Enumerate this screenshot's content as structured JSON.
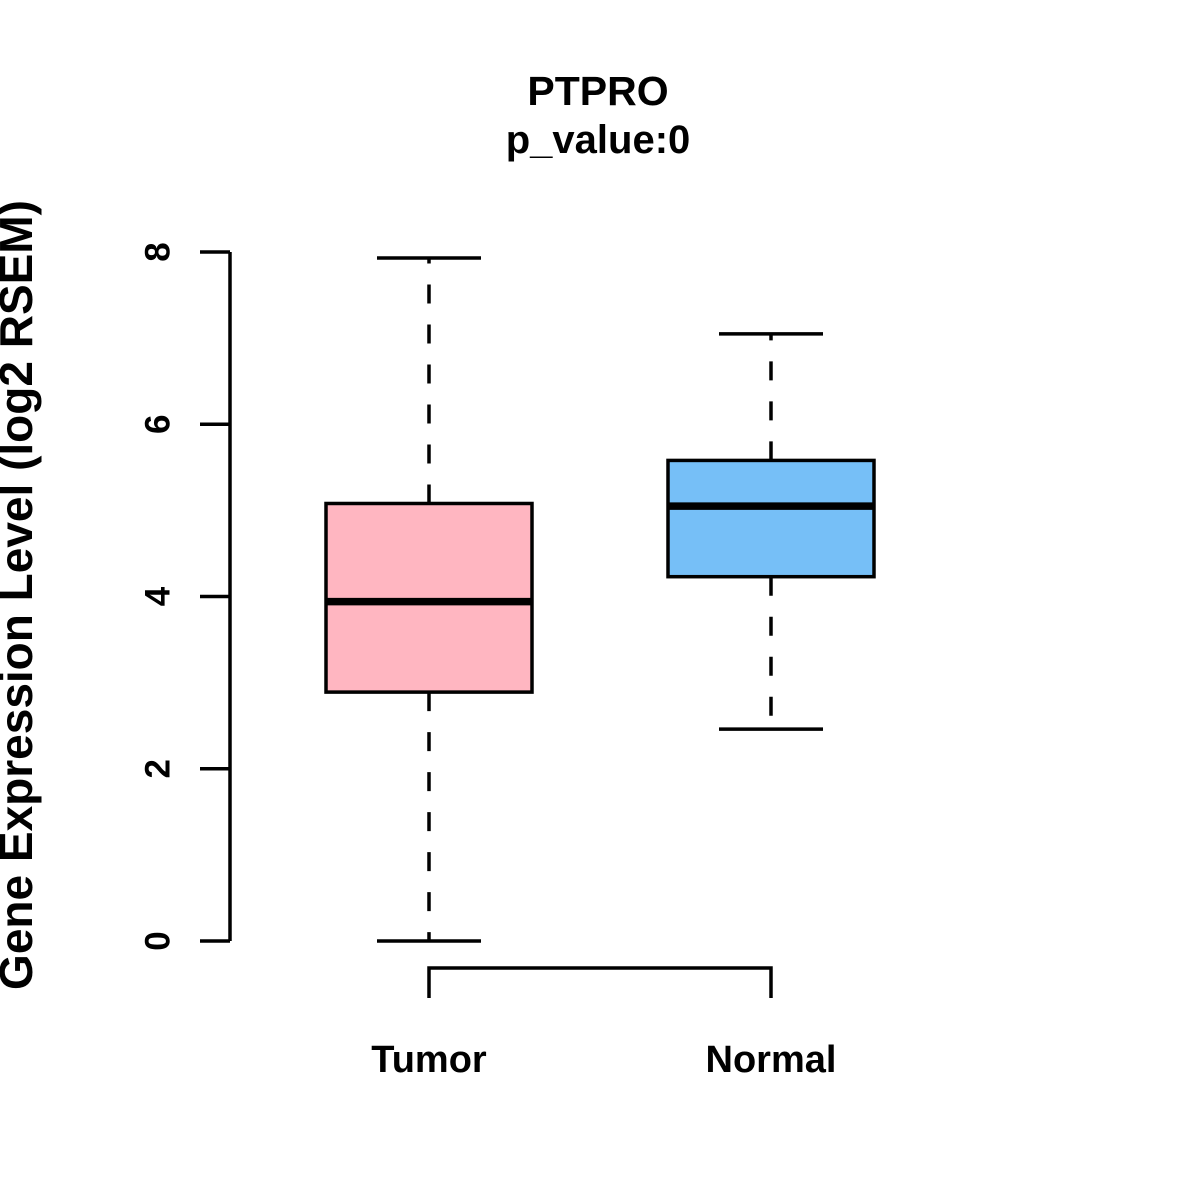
{
  "chart_data": {
    "type": "boxplot",
    "title": "PTPRO",
    "subtitle": "p_value:0",
    "ylabel": "Gene Expression Level (log2 RSEM)",
    "xlabel": "",
    "ylim": [
      0,
      8
    ],
    "yticks": [
      "0",
      "2",
      "4",
      "6",
      "8"
    ],
    "grid": false,
    "legend": false,
    "groups": [
      {
        "label": "Tumor",
        "fill_color": "#FFB6C1",
        "whisker_low": 0.0,
        "q1": 2.89,
        "median": 3.94,
        "q3": 5.08,
        "whisker_high": 7.93
      },
      {
        "label": "Normal",
        "fill_color": "#76BFF7",
        "whisker_low": 2.46,
        "q1": 4.23,
        "median": 5.05,
        "q3": 5.58,
        "whisker_high": 7.05
      }
    ],
    "comparison_bracket": {
      "connects": [
        "Tumor",
        "Normal"
      ]
    },
    "styles": {
      "box_border_color": "#000000",
      "median_color": "#000000",
      "whisker_color": "#000000",
      "axis_color": "#000000",
      "text_color": "#000000",
      "background": "#FFFFFF"
    }
  }
}
